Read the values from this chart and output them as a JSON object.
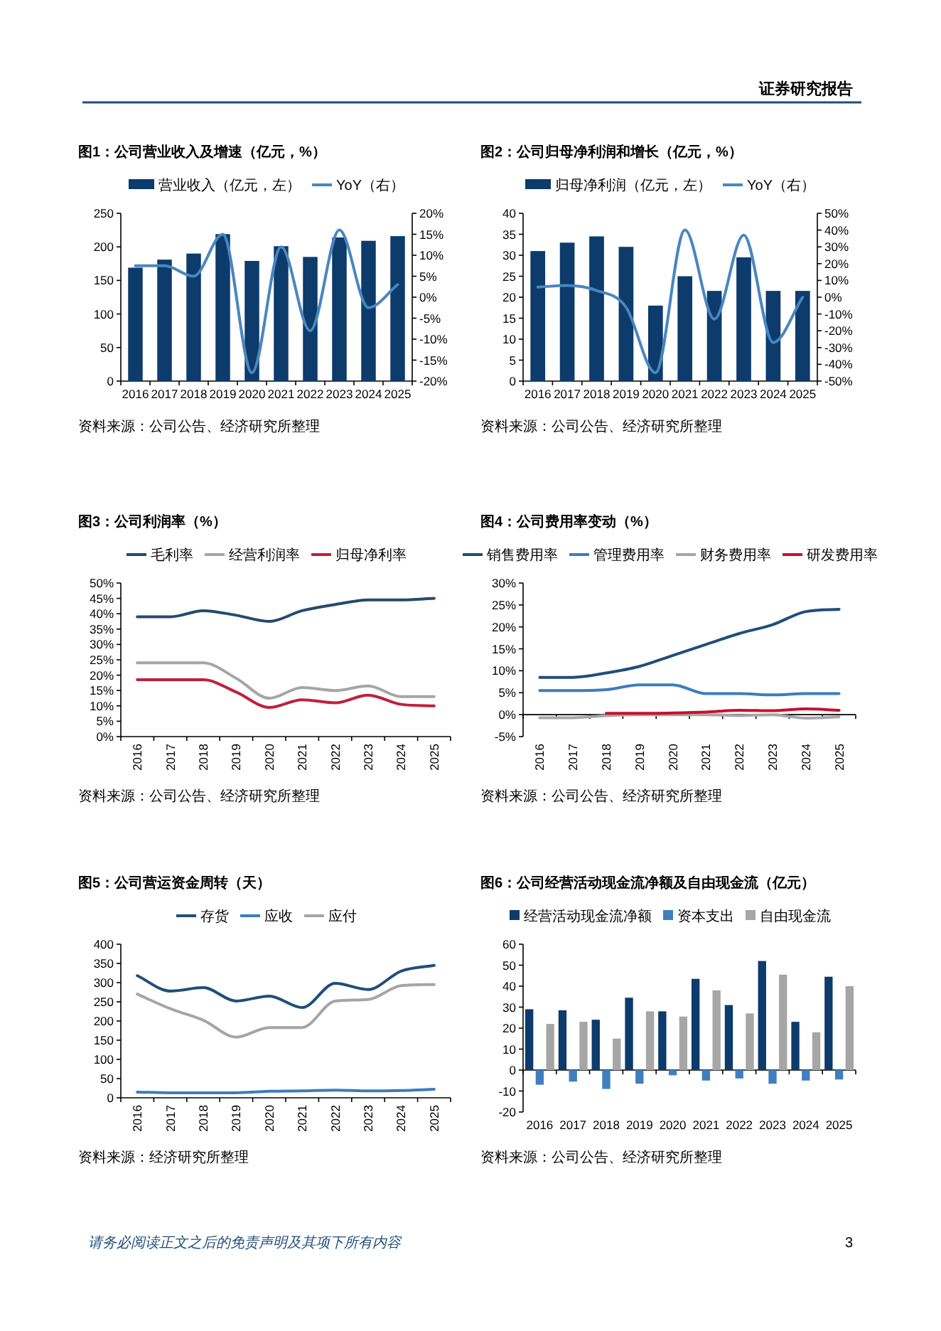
{
  "chart_data": [
    {
      "type": "other",
      "annotations": [
        "证券研究报告",
        "请务必阅读正文之后的免责声明及其项下所有内容",
        "3"
      ]
    },
    {
      "type": "bar",
      "title": "图1：公司营业收入及增速（亿元，%）",
      "categories": [
        "2016",
        "2017",
        "2018",
        "2019",
        "2020",
        "2021",
        "2022",
        "2023",
        "2024",
        "2025"
      ],
      "series": [
        {
          "name": "营业收入（亿元，左）",
          "type": "bar",
          "color": "#0c3b6c",
          "values": [
            169,
            181,
            190,
            219,
            179,
            201,
            185,
            214,
            209,
            216
          ]
        },
        {
          "name": "YoY（右）",
          "type": "line",
          "axis": "y2",
          "color": "#4a86c0",
          "values": [
            7.5,
            7.5,
            5,
            15,
            -18,
            12,
            -8,
            16,
            -2.5,
            3
          ]
        }
      ],
      "ylim": [
        0,
        250
      ],
      "yticks": [
        0,
        50,
        100,
        150,
        200,
        250
      ],
      "y2lim": [
        -20,
        20
      ],
      "y2ticks": [
        {
          "value": -20,
          "label": "-20%"
        },
        {
          "value": -15,
          "label": "-15%"
        },
        {
          "value": -10,
          "label": "-10%"
        },
        {
          "value": -5,
          "label": "-5%"
        },
        {
          "value": 0,
          "label": "0%"
        },
        {
          "value": 5,
          "label": "5%"
        },
        {
          "value": 10,
          "label": "10%"
        },
        {
          "value": 15,
          "label": "15%"
        },
        {
          "value": 20,
          "label": "20%"
        }
      ],
      "legend": "top",
      "annotations": [
        "资料来源：公司公告、经济研究所整理"
      ]
    },
    {
      "type": "bar",
      "title": "图2：公司归母净利润和增长（亿元，%）",
      "categories": [
        "2016",
        "2017",
        "2018",
        "2019",
        "2020",
        "2021",
        "2022",
        "2023",
        "2024",
        "2025"
      ],
      "series": [
        {
          "name": "归母净利润（亿元，左）",
          "type": "bar",
          "color": "#0c3b6c",
          "values": [
            31,
            33,
            34.5,
            32,
            18,
            25,
            21.5,
            29.5,
            21.5,
            21.5
          ]
        },
        {
          "name": "YoY（右）",
          "type": "line",
          "axis": "y2",
          "color": "#4a86c0",
          "values": [
            6,
            7,
            4,
            -6,
            -45,
            40,
            -13,
            37,
            -27,
            0
          ]
        }
      ],
      "ylim": [
        0,
        40
      ],
      "yticks": [
        0,
        5,
        10,
        15,
        20,
        25,
        30,
        35,
        40
      ],
      "y2lim": [
        -50,
        50
      ],
      "y2ticks": [
        {
          "value": -50,
          "label": "-50%"
        },
        {
          "value": -40,
          "label": "-40%"
        },
        {
          "value": -30,
          "label": "-30%"
        },
        {
          "value": -20,
          "label": "-20%"
        },
        {
          "value": -10,
          "label": "-10%"
        },
        {
          "value": 0,
          "label": "0%"
        },
        {
          "value": 10,
          "label": "10%"
        },
        {
          "value": 20,
          "label": "20%"
        },
        {
          "value": 30,
          "label": "30%"
        },
        {
          "value": 40,
          "label": "40%"
        },
        {
          "value": 50,
          "label": "50%"
        }
      ],
      "legend": "top",
      "annotations": [
        "资料来源：公司公告、经济研究所整理"
      ]
    },
    {
      "type": "line",
      "title": "图3：公司利润率（%）",
      "categories": [
        "2016",
        "2017",
        "2018",
        "2019",
        "2020",
        "2021",
        "2022",
        "2023",
        "2024",
        "2025"
      ],
      "series": [
        {
          "name": "毛利率",
          "color": "#244a6e",
          "values": [
            39,
            39,
            41,
            39.5,
            37.5,
            41,
            43,
            44.5,
            44.5,
            45
          ]
        },
        {
          "name": "经营利润率",
          "color": "#a5a5a5",
          "values": [
            24,
            24,
            24,
            19,
            12.5,
            16,
            15,
            16.5,
            13,
            13
          ]
        },
        {
          "name": "归母净利率",
          "color": "#c0203a",
          "values": [
            18.5,
            18.5,
            18.5,
            14.5,
            9.5,
            12,
            11,
            13.5,
            10.5,
            10
          ]
        }
      ],
      "ylim": [
        0,
        50
      ],
      "yticks": [
        {
          "value": 0,
          "label": "0%"
        },
        {
          "value": 5,
          "label": "5%"
        },
        {
          "value": 10,
          "label": "10%"
        },
        {
          "value": 15,
          "label": "15%"
        },
        {
          "value": 20,
          "label": "20%"
        },
        {
          "value": 25,
          "label": "25%"
        },
        {
          "value": 30,
          "label": "30%"
        },
        {
          "value": 35,
          "label": "35%"
        },
        {
          "value": 40,
          "label": "40%"
        },
        {
          "value": 45,
          "label": "45%"
        },
        {
          "value": 50,
          "label": "50%"
        }
      ],
      "legend": "top",
      "annotations": [
        "资料来源：公司公告、经济研究所整理"
      ]
    },
    {
      "type": "line",
      "title": "图4：公司费用率变动（%）",
      "categories": [
        "2016",
        "2017",
        "2018",
        "2019",
        "2020",
        "2021",
        "2022",
        "2023",
        "2024",
        "2025"
      ],
      "series": [
        {
          "name": "销售费用率",
          "color": "#1f4e79",
          "values": [
            8.5,
            8.5,
            9.5,
            11,
            13.5,
            16,
            18.5,
            20.5,
            23.5,
            24
          ]
        },
        {
          "name": "管理费用率",
          "color": "#3c7dbb",
          "values": [
            5.5,
            5.5,
            5.7,
            6.8,
            6.8,
            4.8,
            4.8,
            4.5,
            4.8,
            4.8
          ]
        },
        {
          "name": "财务费用率",
          "color": "#a6a6a6",
          "values": [
            -0.7,
            -0.7,
            -0.2,
            0,
            0,
            0,
            -0.2,
            0,
            -0.8,
            -0.5
          ]
        },
        {
          "name": "研发费用率",
          "color": "#c8102e",
          "values": [
            null,
            null,
            0.3,
            0.3,
            0.4,
            0.6,
            1,
            0.9,
            1.3,
            1
          ]
        }
      ],
      "ylim": [
        -5,
        30
      ],
      "yticks": [
        {
          "value": -5,
          "label": "-5%"
        },
        {
          "value": 0,
          "label": "0%"
        },
        {
          "value": 5,
          "label": "5%"
        },
        {
          "value": 10,
          "label": "10%"
        },
        {
          "value": 15,
          "label": "15%"
        },
        {
          "value": 20,
          "label": "20%"
        },
        {
          "value": 25,
          "label": "25%"
        },
        {
          "value": 30,
          "label": "30%"
        }
      ],
      "legend": "top",
      "annotations": [
        "资料来源：公司公告、经济研究所整理"
      ]
    },
    {
      "type": "line",
      "title": "图5：公司营运资金周转（天）",
      "categories": [
        "2016",
        "2017",
        "2018",
        "2019",
        "2020",
        "2021",
        "2022",
        "2023",
        "2024",
        "2025"
      ],
      "series": [
        {
          "name": "存货",
          "color": "#1f4e79",
          "values": [
            318,
            278,
            287,
            252,
            265,
            235,
            298,
            282,
            330,
            345
          ]
        },
        {
          "name": "应收",
          "color": "#3c7dbb",
          "values": [
            15,
            13,
            13,
            13,
            17,
            18,
            20,
            18,
            19,
            22
          ]
        },
        {
          "name": "应付",
          "color": "#a5a5a5",
          "values": [
            270,
            232,
            202,
            158,
            183,
            183,
            252,
            256,
            292,
            295
          ]
        }
      ],
      "ylim": [
        0,
        400
      ],
      "yticks": [
        0,
        50,
        100,
        150,
        200,
        250,
        300,
        350,
        400
      ],
      "legend": "top",
      "annotations": [
        "资料来源：经济研究所整理"
      ]
    },
    {
      "type": "bar",
      "title": "图6：公司经营活动现金流净额及自由现金流（亿元）",
      "categories": [
        "2016",
        "2017",
        "2018",
        "2019",
        "2020",
        "2021",
        "2022",
        "2023",
        "2024",
        "2025"
      ],
      "series": [
        {
          "name": "经营活动现金流净额",
          "color": "#0c3b6c",
          "values": [
            29,
            28.5,
            24,
            34.5,
            28,
            43.5,
            31,
            52,
            23,
            44.5
          ]
        },
        {
          "name": "资本支出",
          "color": "#3f7fbf",
          "values": [
            -7,
            -5.5,
            -9,
            -6.5,
            -2.5,
            -5,
            -4,
            -6.5,
            -5,
            -4.5
          ]
        },
        {
          "name": "自由现金流",
          "color": "#a6a6a6",
          "values": [
            22,
            23,
            15,
            28,
            25.5,
            38,
            27,
            45.5,
            18,
            40
          ]
        }
      ],
      "ylim": [
        -20,
        60
      ],
      "yticks": [
        -20,
        -10,
        0,
        10,
        20,
        30,
        40,
        50,
        60
      ],
      "legend": "top",
      "annotations": [
        "资料来源：公司公告、经济研究所整理"
      ]
    }
  ]
}
